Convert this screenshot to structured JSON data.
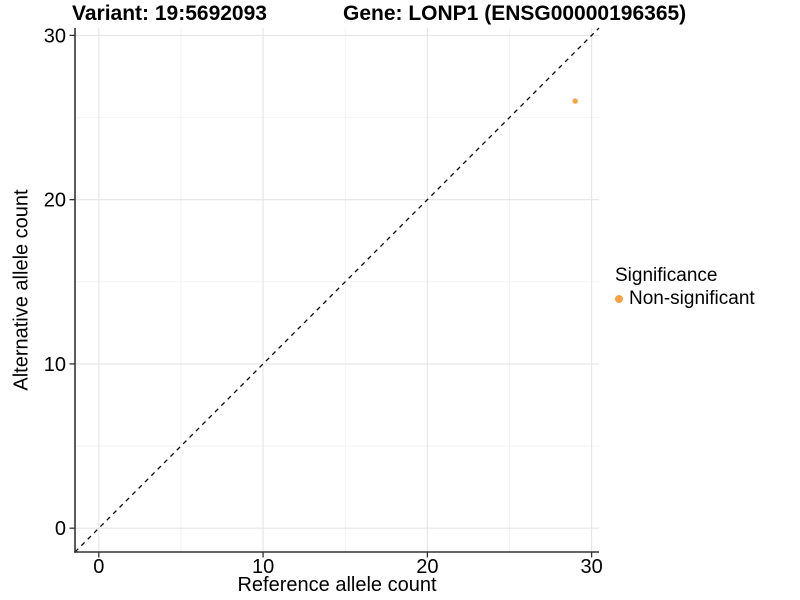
{
  "chart_data": {
    "type": "scatter",
    "titles": {
      "variant": "Variant: 19:5692093",
      "gene": "Gene: LONP1 (ENSG00000196365)"
    },
    "xlabel": "Reference allele count",
    "ylabel": "Alternative allele count",
    "xlim": [
      -1.45,
      30.45
    ],
    "ylim": [
      -1.45,
      30.45
    ],
    "x_ticks": [
      0,
      10,
      20,
      30
    ],
    "y_ticks": [
      0,
      10,
      20,
      30
    ],
    "x_minor_ticks": [
      5,
      15,
      25
    ],
    "y_minor_ticks": [
      5,
      15,
      25
    ],
    "grid": "major and minor gridlines, light gray on white panel",
    "reference_line": {
      "style": "dashed",
      "slope": 1,
      "intercept": 0,
      "color": "#000000"
    },
    "series": [
      {
        "name": "Non-significant",
        "color": "#F9A242",
        "points": [
          {
            "x": 29,
            "y": 26
          }
        ]
      }
    ],
    "legend": {
      "title": "Significance",
      "position": "right",
      "entries": [
        {
          "label": "Non-significant",
          "color": "#F9A242"
        }
      ]
    }
  },
  "colors": {
    "background": "#ffffff",
    "axis_line": "#333333",
    "tick_mark": "#333333",
    "grid_major": "#e5e5e5",
    "grid_minor": "#f0f0f0",
    "text": "#000000",
    "point": "#F9A242"
  }
}
